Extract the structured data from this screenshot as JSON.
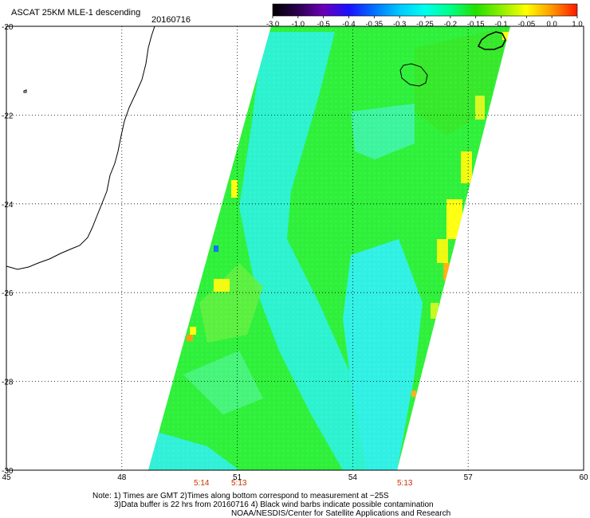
{
  "header": {
    "title": "ASCAT 25KM MLE-1 descending",
    "date": "20160716"
  },
  "colorbar": {
    "labels": [
      "-3.0",
      "-1.0",
      "-0.5",
      "-0.4",
      "-0.35",
      "-0.3",
      "-0.25",
      "-0.2",
      "-0.15",
      "-0.1",
      "-0.05",
      "0.0",
      "1.0"
    ],
    "colors": [
      "#000000",
      "#2a004e",
      "#6a00b8",
      "#1a10ff",
      "#0070ff",
      "#00c8ff",
      "#00ffee",
      "#00ff88",
      "#22e000",
      "#8cf000",
      "#ffff00",
      "#ff9800",
      "#ff1800"
    ]
  },
  "map": {
    "lon_range": [
      45,
      60
    ],
    "lat_range": [
      -30,
      -20
    ],
    "lon_ticks": [
      "45",
      "48",
      "51",
      "54",
      "57",
      "60"
    ],
    "lat_ticks": [
      "-20",
      "-22",
      "-24",
      "-26",
      "-28",
      "-30"
    ],
    "grid": true,
    "swath_colors": {
      "base": "#2ef03a",
      "cyan": "#2cf2e0",
      "yellow": "#ffff10",
      "orange": "#ff9a10",
      "blue": "#1070ff"
    }
  },
  "times": [
    {
      "label": "5:14",
      "lon": 50.0
    },
    {
      "label": "5:13",
      "lon": 51.0
    },
    {
      "label": "5:13",
      "lon": 55.3
    }
  ],
  "notes": [
    "Note: 1) Times are GMT 2)Times along bottom correspond to measurement at ~25S",
    "3)Data buffer is 22 hrs from 20160716 4) Black wind barbs indicate possible contamination",
    "NOAA/NESDIS/Center for Satellite Applications and Research"
  ]
}
